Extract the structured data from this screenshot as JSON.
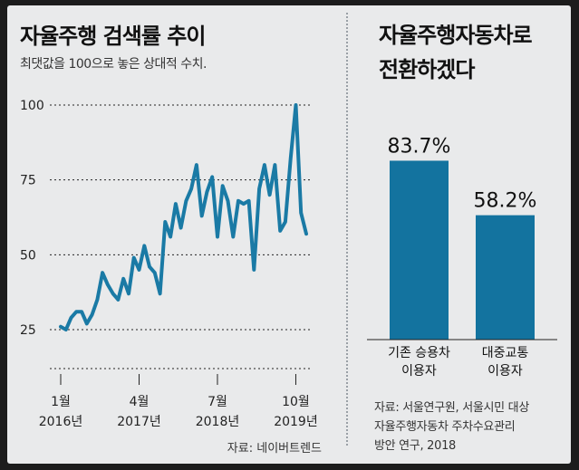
{
  "left_panel": {
    "title": "자율주행 검색률 추이",
    "subtitle": "최댓값을 100으로 놓은 상대적 수치.",
    "source": "자료: 네이버트렌드"
  },
  "right_panel": {
    "title_lines": [
      "자율주행자동차로",
      "전환하겠다"
    ],
    "source_lines": [
      "자료: 서울연구원, 서울시민 대상",
      "자율주행자동차 주차수요관리",
      "방안 연구, 2018"
    ]
  },
  "colors": {
    "accent": "#1a7aa5",
    "bar": "#13739f",
    "grid": "#222222"
  },
  "chart_data": [
    {
      "type": "line",
      "title": "자율주행 검색률 추이",
      "subtitle": "최댓값을 100으로 놓은 상대적 수치.",
      "xlabel": "",
      "ylabel": "",
      "ylim": [
        12,
        100
      ],
      "yticks": [
        100,
        75,
        50,
        25
      ],
      "grid": true,
      "x_ticks": [
        {
          "month": "1월",
          "year": "2016년",
          "index": 0
        },
        {
          "month": "4월",
          "year": "2017년",
          "index": 15
        },
        {
          "month": "7월",
          "year": "2018년",
          "index": 30
        },
        {
          "month": "10월",
          "year": "2019년",
          "index": 45
        }
      ],
      "series": [
        {
          "values": [
            26,
            25,
            29,
            31,
            31,
            27,
            30,
            35,
            44,
            40,
            37,
            35,
            42,
            37,
            49,
            45,
            53,
            46,
            44,
            37,
            61,
            56,
            67,
            59,
            68,
            72,
            80,
            63,
            71,
            76,
            56,
            73,
            68,
            56,
            68,
            67,
            68,
            45,
            72,
            80,
            70,
            80,
            58,
            61,
            82,
            100,
            64,
            57
          ]
        }
      ]
    },
    {
      "type": "bar",
      "title": "자율주행자동차로 전환하겠다",
      "categories": [
        "기존 승용차\n이용자",
        "대중교통\n이용자"
      ],
      "values": [
        83.7,
        58.2
      ],
      "value_labels": [
        "83.7%",
        "58.2%"
      ],
      "ylim": [
        0,
        100
      ]
    }
  ]
}
